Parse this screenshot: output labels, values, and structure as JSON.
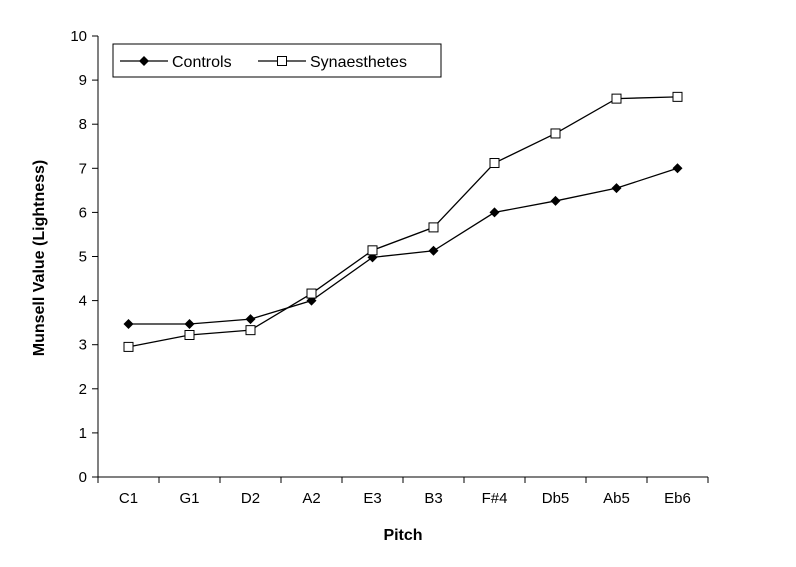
{
  "chart_data": {
    "type": "line",
    "title": "",
    "xlabel": "Pitch",
    "ylabel": "Munsell Value (Lightness)",
    "categories": [
      "C1",
      "G1",
      "D2",
      "A2",
      "E3",
      "B3",
      "F#4",
      "Db5",
      "Ab5",
      "Eb6"
    ],
    "ylim": [
      0,
      10
    ],
    "yticks": [
      0,
      1,
      2,
      3,
      4,
      5,
      6,
      7,
      8,
      9,
      10
    ],
    "grid": false,
    "legend_position": "top-left",
    "series": [
      {
        "name": "Controls",
        "marker": "filled-diamond",
        "color": "#000000",
        "values": [
          3.47,
          3.47,
          3.58,
          4.0,
          4.98,
          5.13,
          6.0,
          6.26,
          6.55,
          7.0
        ]
      },
      {
        "name": "Synaesthetes",
        "marker": "open-square",
        "color": "#000000",
        "values": [
          2.95,
          3.22,
          3.33,
          4.16,
          5.14,
          5.66,
          7.12,
          7.79,
          8.58,
          8.62
        ]
      }
    ]
  }
}
